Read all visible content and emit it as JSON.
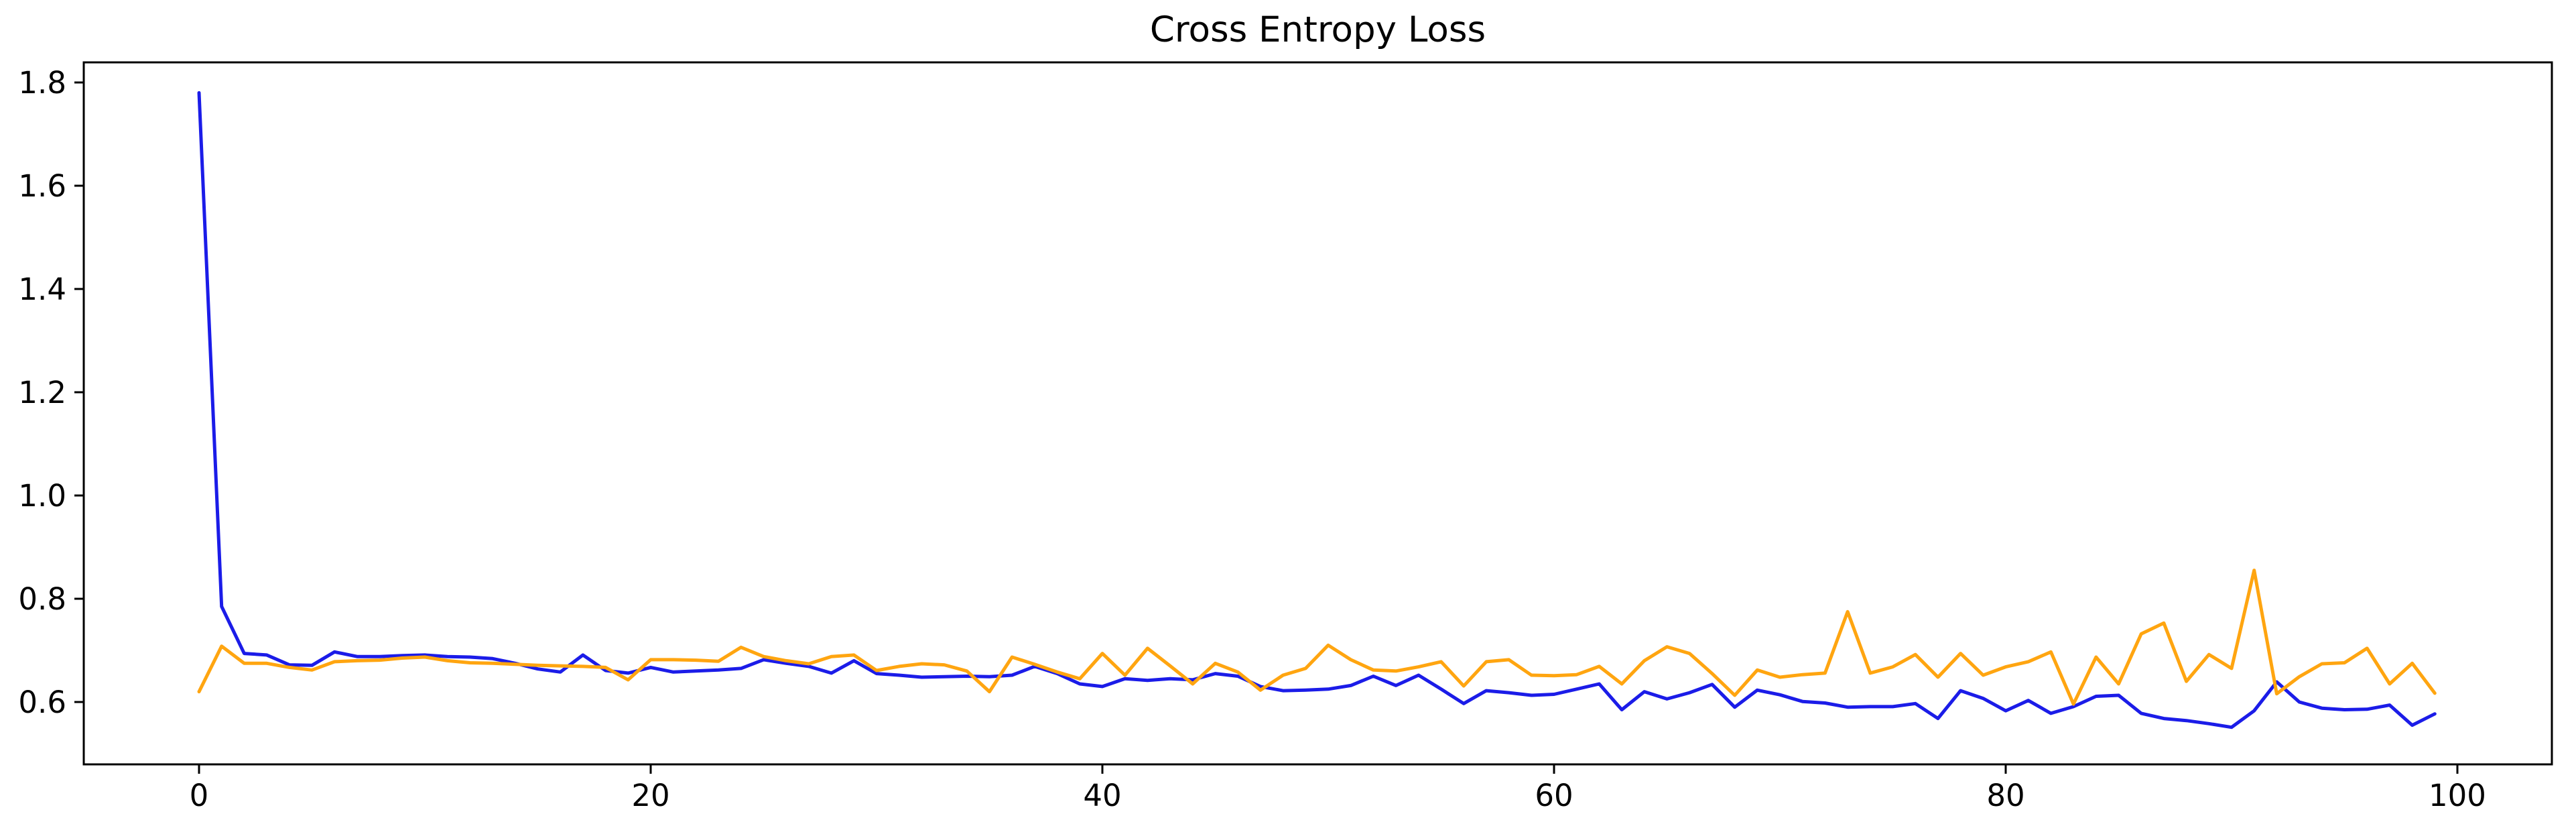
{
  "figure": {
    "title": "Cross Entropy Loss",
    "background_color": "#ffffff",
    "axis_color": "#000000",
    "grid": false,
    "legend": "none"
  },
  "chart_data": {
    "type": "line",
    "title": "Cross Entropy Loss",
    "xlabel": "",
    "ylabel": "",
    "xticks": [
      0,
      20,
      40,
      60,
      80,
      100
    ],
    "xtick_labels": [
      "0",
      "20",
      "40",
      "60",
      "80",
      "100"
    ],
    "yticks": [
      0.6,
      0.8,
      1.0,
      1.2,
      1.4,
      1.6,
      1.8
    ],
    "ytick_labels": [
      "0.6",
      "0.8",
      "1.0",
      "1.2",
      "1.4",
      "1.6",
      "1.8"
    ],
    "xlim": [
      -4.95,
      103.95
    ],
    "ylim": [
      0.49,
      1.84
    ],
    "grid": false,
    "legend_position": "none",
    "x": [
      0,
      1,
      2,
      3,
      4,
      5,
      6,
      7,
      8,
      9,
      10,
      11,
      12,
      13,
      14,
      15,
      16,
      17,
      18,
      19,
      20,
      21,
      22,
      23,
      24,
      25,
      26,
      27,
      28,
      29,
      30,
      31,
      32,
      33,
      34,
      35,
      36,
      37,
      38,
      39,
      40,
      41,
      42,
      43,
      44,
      45,
      46,
      47,
      48,
      49,
      50,
      51,
      52,
      53,
      54,
      55,
      56,
      57,
      58,
      59,
      60,
      61,
      62,
      63,
      64,
      65,
      66,
      67,
      68,
      69,
      70,
      71,
      72,
      73,
      74,
      75,
      76,
      77,
      78,
      79,
      80,
      81,
      82,
      83,
      84,
      85,
      86,
      87,
      88,
      89,
      90,
      91,
      92,
      93,
      94,
      95,
      96,
      97,
      98,
      99
    ],
    "series": [
      {
        "name": "blue",
        "color": "#1b1ce8",
        "values": [
          1.78,
          0.785,
          0.694,
          0.691,
          0.672,
          0.671,
          0.697,
          0.688,
          0.688,
          0.69,
          0.691,
          0.688,
          0.687,
          0.684,
          0.675,
          0.664,
          0.658,
          0.691,
          0.661,
          0.656,
          0.667,
          0.658,
          0.66,
          0.662,
          0.665,
          0.682,
          0.675,
          0.669,
          0.656,
          0.68,
          0.655,
          0.652,
          0.648,
          0.649,
          0.65,
          0.649,
          0.652,
          0.669,
          0.655,
          0.635,
          0.63,
          0.645,
          0.642,
          0.645,
          0.643,
          0.655,
          0.65,
          0.63,
          0.622,
          0.623,
          0.625,
          0.632,
          0.65,
          0.632,
          0.652,
          0.625,
          0.597,
          0.622,
          0.618,
          0.613,
          0.615,
          0.625,
          0.635,
          0.585,
          0.62,
          0.606,
          0.618,
          0.634,
          0.59,
          0.623,
          0.614,
          0.601,
          0.598,
          0.59,
          0.591,
          0.591,
          0.597,
          0.568,
          0.622,
          0.607,
          0.583,
          0.603,
          0.578,
          0.591,
          0.611,
          0.613,
          0.578,
          0.568,
          0.564,
          0.558,
          0.551,
          0.583,
          0.639,
          0.6,
          0.588,
          0.585,
          0.586,
          0.594,
          0.555,
          0.577
        ]
      },
      {
        "name": "orange",
        "color": "#ffa510",
        "values": [
          0.62,
          0.708,
          0.675,
          0.675,
          0.667,
          0.662,
          0.678,
          0.68,
          0.681,
          0.685,
          0.687,
          0.68,
          0.676,
          0.675,
          0.673,
          0.671,
          0.67,
          0.669,
          0.667,
          0.643,
          0.682,
          0.682,
          0.681,
          0.679,
          0.706,
          0.688,
          0.68,
          0.674,
          0.688,
          0.691,
          0.661,
          0.669,
          0.674,
          0.672,
          0.66,
          0.62,
          0.687,
          0.673,
          0.658,
          0.645,
          0.694,
          0.652,
          0.704,
          0.67,
          0.635,
          0.675,
          0.658,
          0.623,
          0.652,
          0.665,
          0.71,
          0.682,
          0.662,
          0.66,
          0.668,
          0.678,
          0.631,
          0.678,
          0.682,
          0.652,
          0.651,
          0.653,
          0.669,
          0.635,
          0.68,
          0.707,
          0.694,
          0.655,
          0.613,
          0.662,
          0.648,
          0.653,
          0.656,
          0.775,
          0.656,
          0.668,
          0.692,
          0.648,
          0.694,
          0.652,
          0.668,
          0.678,
          0.697,
          0.596,
          0.687,
          0.635,
          0.732,
          0.753,
          0.64,
          0.692,
          0.665,
          0.855,
          0.616,
          0.649,
          0.674,
          0.676,
          0.704,
          0.635,
          0.675,
          0.617
        ]
      }
    ]
  }
}
